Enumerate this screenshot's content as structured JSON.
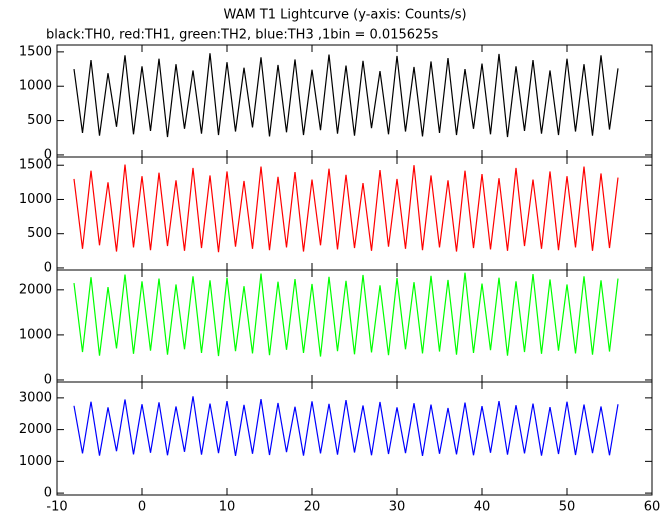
{
  "chart_data": [
    {
      "type": "line",
      "title": "WAM T1 Lightcurve (y-axis: Counts/s)",
      "subtitle": "black:TH0, red:TH1, green:TH2, blue:TH3 ,1bin = 0.015625s",
      "x": [
        -8,
        -7,
        -6,
        -5,
        -4,
        -3,
        -2,
        -1,
        0,
        1,
        2,
        3,
        4,
        5,
        6,
        7,
        8,
        9,
        10,
        11,
        12,
        13,
        14,
        15,
        16,
        17,
        18,
        19,
        20,
        21,
        22,
        23,
        24,
        25,
        26,
        27,
        28,
        29,
        30,
        31,
        32,
        33,
        34,
        35,
        36,
        37,
        38,
        39,
        40,
        41,
        42,
        43,
        44,
        45,
        46,
        47,
        48,
        49,
        50,
        51,
        52,
        53,
        54,
        55,
        56
      ],
      "series": [
        {
          "color": "#000000",
          "values": [
            1250,
            320,
            1380,
            280,
            1190,
            410,
            1450,
            300,
            1290,
            350,
            1400,
            260,
            1320,
            380,
            1230,
            310,
            1480,
            290,
            1350,
            340,
            1270,
            400,
            1420,
            270,
            1310,
            330,
            1390,
            290,
            1240,
            360,
            1460,
            310,
            1300,
            280,
            1370,
            390,
            1220,
            300,
            1440,
            340,
            1280,
            270,
            1360,
            320,
            1410,
            290,
            1250,
            380,
            1330,
            300,
            1470,
            260,
            1290,
            350,
            1380,
            310,
            1230,
            290,
            1400,
            340,
            1320,
            280,
            1450,
            370,
            1260
          ]
        }
      ],
      "xlim": [
        -10,
        60
      ],
      "xticks": [
        -10,
        0,
        10,
        20,
        30,
        40,
        50,
        60
      ],
      "ylim": [
        -30,
        1600
      ],
      "yticks": [
        0,
        500,
        1000,
        1500
      ]
    },
    {
      "type": "line",
      "x": [
        -8,
        -7,
        -6,
        -5,
        -4,
        -3,
        -2,
        -1,
        0,
        1,
        2,
        3,
        4,
        5,
        6,
        7,
        8,
        9,
        10,
        11,
        12,
        13,
        14,
        15,
        16,
        17,
        18,
        19,
        20,
        21,
        22,
        23,
        24,
        25,
        26,
        27,
        28,
        29,
        30,
        31,
        32,
        33,
        34,
        35,
        36,
        37,
        38,
        39,
        40,
        41,
        42,
        43,
        44,
        45,
        46,
        47,
        48,
        49,
        50,
        51,
        52,
        53,
        54,
        55,
        56
      ],
      "series": [
        {
          "color": "#ff0000",
          "values": [
            1300,
            280,
            1420,
            330,
            1250,
            240,
            1510,
            300,
            1340,
            260,
            1390,
            320,
            1280,
            250,
            1460,
            290,
            1350,
            230,
            1410,
            310,
            1270,
            280,
            1480,
            260,
            1330,
            300,
            1400,
            240,
            1290,
            330,
            1450,
            270,
            1360,
            290,
            1240,
            250,
            1430,
            310,
            1300,
            280,
            1500,
            260,
            1350,
            300,
            1280,
            240,
            1420,
            290,
            1370,
            270,
            1310,
            250,
            1460,
            320,
            1290,
            280,
            1410,
            260,
            1340,
            300,
            1480,
            250,
            1380,
            290,
            1320
          ]
        }
      ],
      "xlim": [
        -10,
        60
      ],
      "xticks": [
        -10,
        0,
        10,
        20,
        30,
        40,
        50,
        60
      ],
      "ylim": [
        -30,
        1620
      ],
      "yticks": [
        0,
        500,
        1000,
        1500
      ]
    },
    {
      "type": "line",
      "x": [
        -8,
        -7,
        -6,
        -5,
        -4,
        -3,
        -2,
        -1,
        0,
        1,
        2,
        3,
        4,
        5,
        6,
        7,
        8,
        9,
        10,
        11,
        12,
        13,
        14,
        15,
        16,
        17,
        18,
        19,
        20,
        21,
        22,
        23,
        24,
        25,
        26,
        27,
        28,
        29,
        30,
        31,
        32,
        33,
        34,
        35,
        36,
        37,
        38,
        39,
        40,
        41,
        42,
        43,
        44,
        45,
        46,
        47,
        48,
        49,
        50,
        51,
        52,
        53,
        54,
        55,
        56
      ],
      "series": [
        {
          "color": "#00ff00",
          "values": [
            2150,
            620,
            2280,
            540,
            2060,
            700,
            2340,
            580,
            2190,
            650,
            2250,
            560,
            2120,
            680,
            2300,
            600,
            2210,
            530,
            2270,
            640,
            2080,
            590,
            2360,
            550,
            2180,
            670,
            2240,
            600,
            2130,
            520,
            2290,
            640,
            2200,
            570,
            2330,
            610,
            2100,
            550,
            2260,
            680,
            2170,
            590,
            2310,
            630,
            2220,
            560,
            2380,
            600,
            2140,
            660,
            2270,
            540,
            2190,
            620,
            2350,
            580,
            2230,
            650,
            2120,
            590,
            2300,
            560,
            2210,
            630,
            2250
          ]
        }
      ],
      "xlim": [
        -10,
        60
      ],
      "xticks": [
        -10,
        0,
        10,
        20,
        30,
        40,
        50,
        60
      ],
      "ylim": [
        -45,
        2440
      ],
      "yticks": [
        0,
        1000,
        2000
      ]
    },
    {
      "type": "line",
      "x": [
        -8,
        -7,
        -6,
        -5,
        -4,
        -3,
        -2,
        -1,
        0,
        1,
        2,
        3,
        4,
        5,
        6,
        7,
        8,
        9,
        10,
        11,
        12,
        13,
        14,
        15,
        16,
        17,
        18,
        19,
        20,
        21,
        22,
        23,
        24,
        25,
        26,
        27,
        28,
        29,
        30,
        31,
        32,
        33,
        34,
        35,
        36,
        37,
        38,
        39,
        40,
        41,
        42,
        43,
        44,
        45,
        46,
        47,
        48,
        49,
        50,
        51,
        52,
        53,
        54,
        55,
        56
      ],
      "series": [
        {
          "color": "#0000ff",
          "values": [
            2750,
            1250,
            2880,
            1180,
            2700,
            1320,
            2950,
            1220,
            2800,
            1270,
            2860,
            1190,
            2730,
            1300,
            3050,
            1210,
            2820,
            1260,
            2900,
            1170,
            2780,
            1240,
            2960,
            1200,
            2840,
            1290,
            2720,
            1180,
            2890,
            1250,
            2810,
            1210,
            2930,
            1280,
            2760,
            1190,
            2870,
            1230,
            2700,
            1260,
            2830,
            1170,
            2790,
            1240,
            2680,
            1220,
            2850,
            1190,
            2740,
            1270,
            2900,
            1210,
            2770,
            1250,
            2820,
            1180,
            2710,
            1230,
            2880,
            1200,
            2790,
            1260,
            2730,
            1190,
            2800
          ]
        }
      ],
      "xlim": [
        -10,
        60
      ],
      "xticks": [
        -10,
        0,
        10,
        20,
        30,
        40,
        50,
        60
      ],
      "ylim": [
        -60,
        3500
      ],
      "yticks": [
        0,
        1000,
        2000,
        3000
      ]
    }
  ]
}
